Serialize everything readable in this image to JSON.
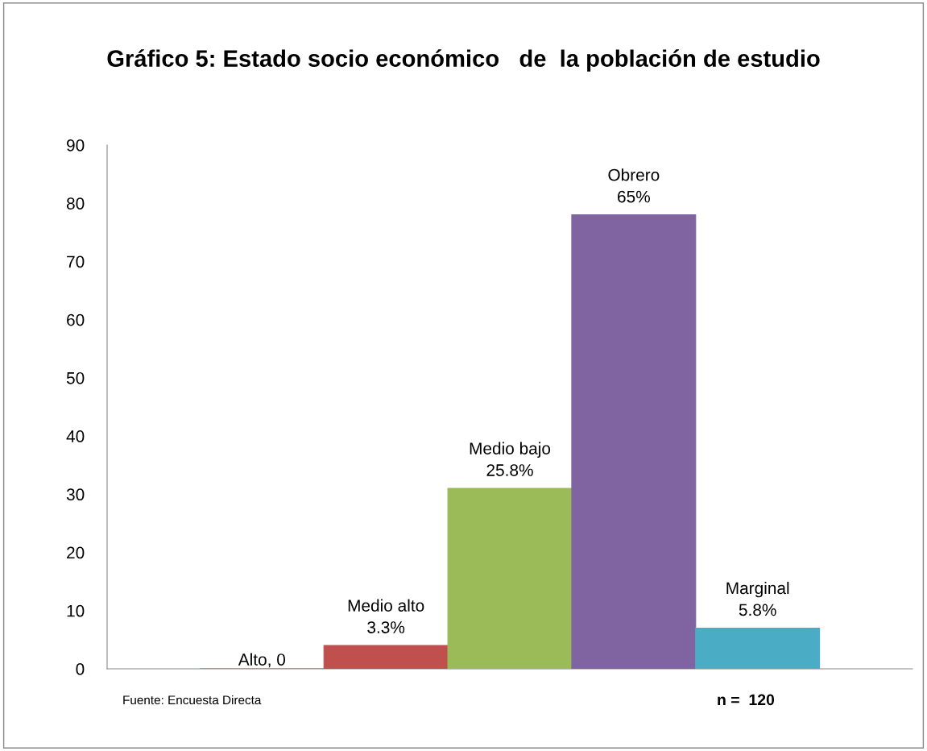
{
  "chart_data": {
    "type": "bar",
    "title": "Gráfico 5: Estado socio económico   de  la población de estudio",
    "categories": [
      null,
      null,
      null,
      null,
      null
    ],
    "values": [
      0,
      4,
      31,
      78,
      7
    ],
    "colors": [
      "#4f81bd",
      "#c0504d",
      "#9bbb59",
      "#8064a2",
      "#4bacc6"
    ],
    "value_labels": [
      "Alto, 0",
      "Medio alto\n3.3%",
      "Medio bajo\n25.8%",
      "Obrero\n65%",
      "Marginal\n5.8%"
    ],
    "ylim": [
      0,
      90
    ],
    "yticks": [
      0,
      10,
      20,
      30,
      40,
      50,
      60,
      70,
      80,
      90
    ],
    "grid": false,
    "legend": false,
    "annotations": [
      "Fuente: Encuesta Directa",
      "n =  120"
    ]
  }
}
